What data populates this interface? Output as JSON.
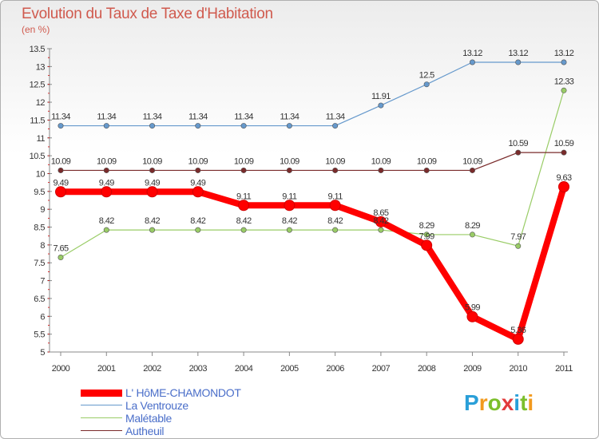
{
  "header": {
    "title": "Evolution du Taux de Taxe d'Habitation",
    "subtitle": "(en %)"
  },
  "brand": {
    "letters": [
      "P",
      "r",
      "o",
      "x",
      "i",
      "t",
      "i"
    ],
    "colors": [
      "#2a9fd8",
      "#f29a1e",
      "#7cbf2c",
      "#e23b3b",
      "#2a9fd8",
      "#7cbf2c",
      "#f29a1e"
    ]
  },
  "chart_data": {
    "type": "line",
    "x": [
      "2000",
      "2001",
      "2002",
      "2003",
      "2004",
      "2005",
      "2006",
      "2007",
      "2008",
      "2009",
      "2010",
      "2011"
    ],
    "ylim": [
      5,
      13.5
    ],
    "yticks": [
      "5",
      "5.5",
      "6",
      "6.5",
      "7",
      "7.5",
      "8",
      "8.5",
      "9",
      "9.5",
      "10",
      "10.5",
      "11",
      "11.5",
      "12",
      "12.5",
      "13",
      "13.5"
    ],
    "grid": false,
    "legend_position": "bottom-left",
    "series": [
      {
        "name": "L' HôME-CHAMONDOT",
        "color": "#ff0000",
        "values": [
          9.49,
          9.49,
          9.49,
          9.49,
          9.11,
          9.11,
          9.11,
          8.65,
          7.99,
          5.99,
          5.36,
          9.63
        ],
        "labels": [
          "9.49",
          "9.49",
          "9.49",
          "9.49",
          "9.11",
          "9.11",
          "9.11",
          "8.65",
          "7.99",
          "5.99",
          "5.36",
          "9.63"
        ]
      },
      {
        "name": "La Ventrouze",
        "color": "#6699cc",
        "values": [
          11.34,
          11.34,
          11.34,
          11.34,
          11.34,
          11.34,
          11.34,
          11.91,
          12.5,
          13.12,
          13.12,
          13.12
        ],
        "labels": [
          "11.34",
          "11.34",
          "11.34",
          "11.34",
          "11.34",
          "11.34",
          "11.34",
          "11.91",
          "12.5",
          "13.12",
          "13.12",
          "13.12"
        ]
      },
      {
        "name": "Malétable",
        "color": "#99cc66",
        "values": [
          7.65,
          8.42,
          8.42,
          8.42,
          8.42,
          8.42,
          8.42,
          8.42,
          8.29,
          8.29,
          7.97,
          12.33
        ],
        "labels": [
          "7.65",
          "8.42",
          "8.42",
          "8.42",
          "8.42",
          "8.42",
          "8.42",
          "8.42",
          "8.29",
          "8.29",
          "7.97",
          "12.33"
        ]
      },
      {
        "name": "Autheuil",
        "color": "#7a2b2b",
        "values": [
          10.09,
          10.09,
          10.09,
          10.09,
          10.09,
          10.09,
          10.09,
          10.09,
          10.09,
          10.09,
          10.59,
          10.59
        ],
        "labels": [
          "10.09",
          "10.09",
          "10.09",
          "10.09",
          "10.09",
          "10.09",
          "10.09",
          "10.09",
          "10.09",
          "10.09",
          "10.59",
          "10.59"
        ]
      }
    ]
  }
}
